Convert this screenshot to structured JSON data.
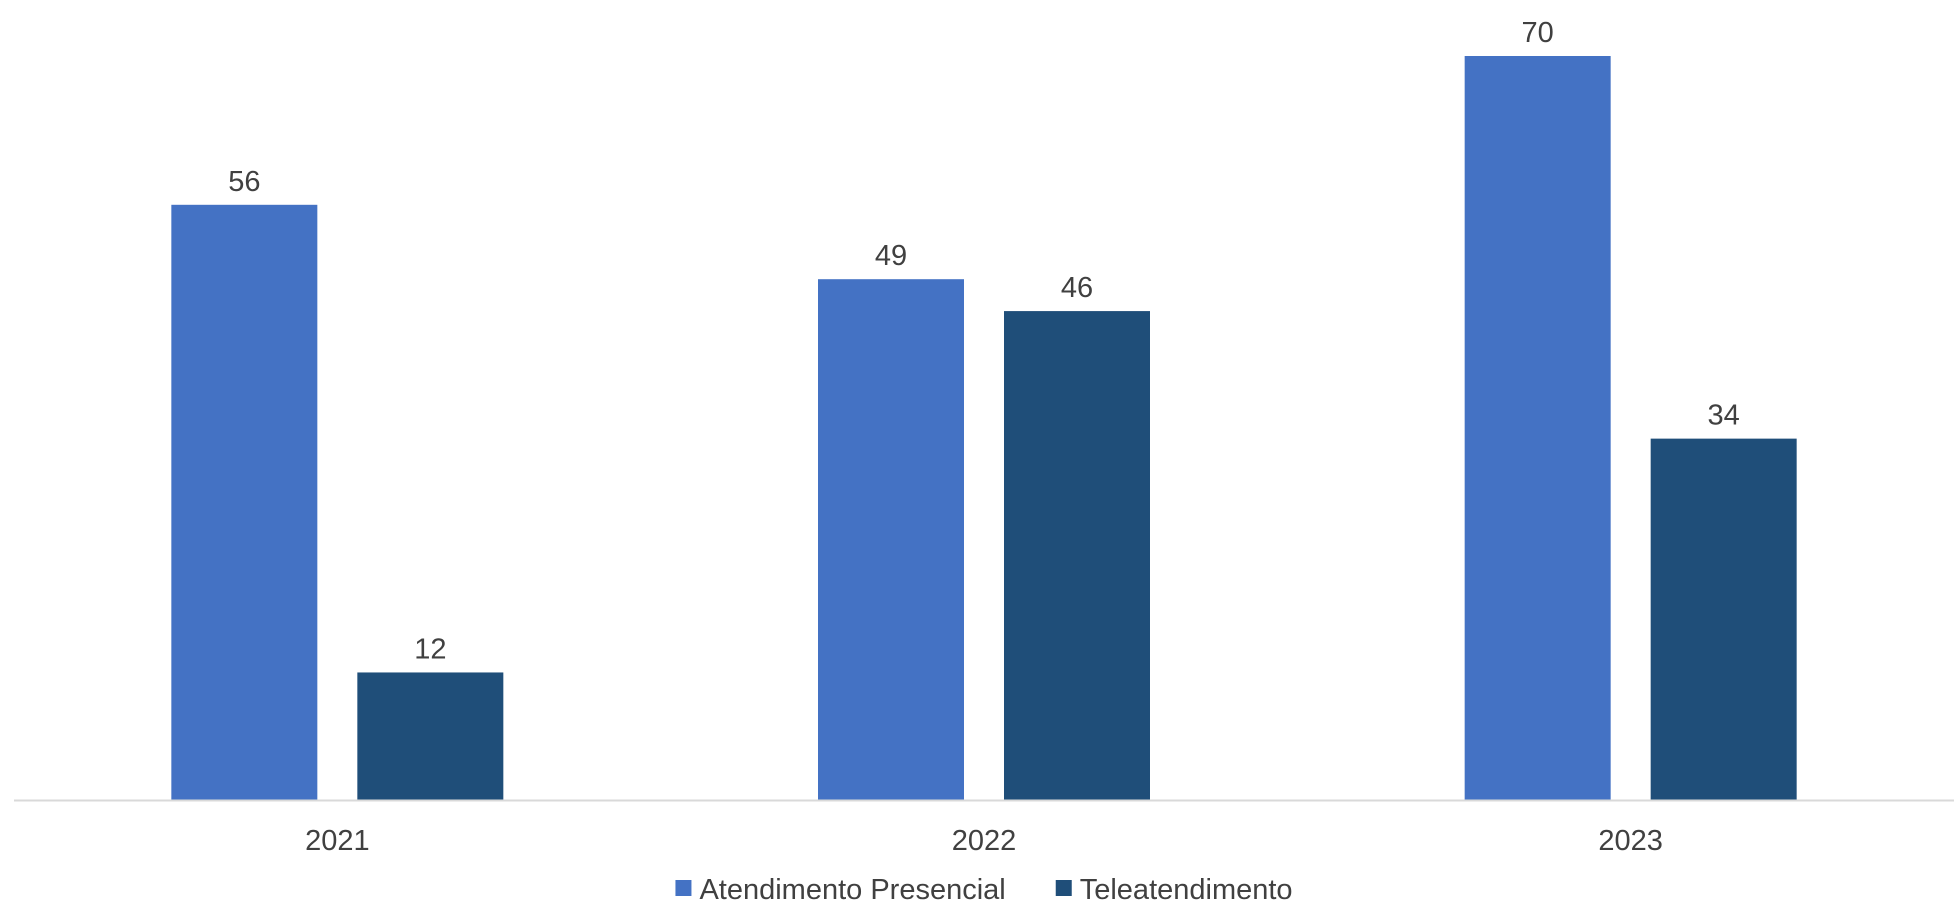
{
  "chart_data": {
    "type": "bar",
    "categories": [
      "2021",
      "2022",
      "2023"
    ],
    "series": [
      {
        "name": "Atendimento Presencial",
        "values": [
          56,
          49,
          70
        ],
        "color": "#4472C4"
      },
      {
        "name": "Teleatendimento",
        "values": [
          12,
          46,
          34
        ],
        "color": "#1F4E79"
      }
    ],
    "ylim": [
      0,
      70
    ],
    "grid": false,
    "data_labels": true,
    "legend_position": "bottom-center",
    "axis_line_color": "#D9D9D9",
    "text_color": "#404040"
  }
}
